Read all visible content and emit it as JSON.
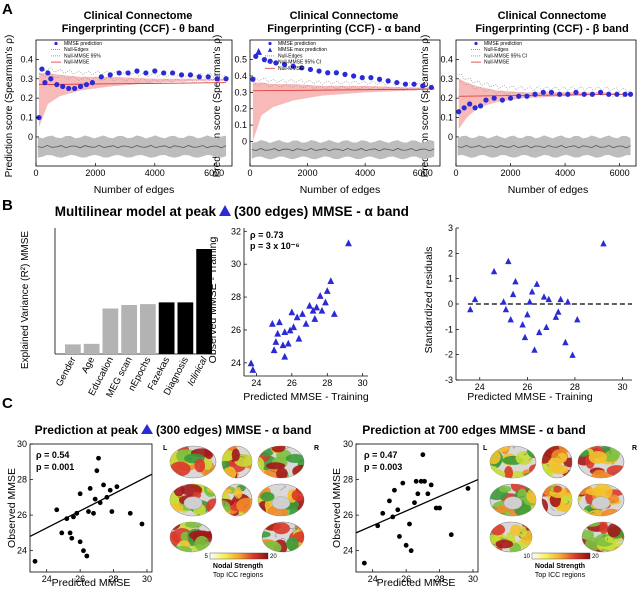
{
  "panel_labels": [
    "A",
    "B",
    "C"
  ],
  "colors": {
    "blue": "#2b2bd6",
    "red": "#d93030",
    "band": "#f7b1b1",
    "gray": "#bdbdbd",
    "grayline": "#555555",
    "bar_gray": "#b3b3b3",
    "black": "#000000"
  },
  "panel_a": {
    "charts": [
      {
        "title": "Clinical Connectome",
        "subtitle": "Fingerprinting (CCF) - θ band",
        "legend": [
          "MMSE prediction",
          "Null-Edges",
          "Null-MMSE 95%",
          "Null-MMSE"
        ]
      },
      {
        "title": "Clinical Connectome",
        "subtitle": "Fingerprinting (CCF) - α band",
        "legend": [
          "MMSE prediction",
          "MMSE max prediction",
          "Null-Edges",
          "Null-MMSE 95% CI",
          "Null-MMSE"
        ]
      },
      {
        "title": "Clinical Connectome",
        "subtitle": "Fingerprinting (CCF) - β band",
        "legend": [
          "MMSE prediction",
          "Null-Edges",
          "Null-MMSE 95% CI",
          "Null-MMSE"
        ]
      }
    ],
    "ylabel": "Prediction score (Spearman's ρ)",
    "xlabel": "Number of edges"
  },
  "panel_b": {
    "title_pre": "Multilinear model at peak",
    "title_post": "(300 edges) MMSE - α band",
    "bar_markers": [
      "*",
      "β+"
    ],
    "scatter_stats": [
      "ρ = 0.73",
      "p = 3 x 10⁻⁶"
    ]
  },
  "panel_c": {
    "left_title_pre": "Prediction at peak",
    "left_title_post": "(300 edges) MMSE - α band",
    "right_title": "Prediction at 700 edges MMSE - α band",
    "left_stats": [
      "ρ = 0.54",
      "p = 0.001"
    ],
    "right_stats": [
      "ρ = 0.47",
      "p = 0.003"
    ],
    "brain_side_labels": [
      "L",
      "R"
    ],
    "colorbar_title": "Nodal Strength",
    "colorbar_subtitle": "Top ICC regions",
    "left_colorbar_range": [
      "5",
      "20"
    ],
    "right_colorbar_range": [
      "10",
      "20"
    ]
  },
  "chart_data": [
    {
      "id": "a-theta",
      "type": "line",
      "xlabel": "Number of edges",
      "ylabel": "Prediction score (Spearman's ρ)",
      "xlim": [
        0,
        6600
      ],
      "ylim": [
        -0.15,
        0.5
      ],
      "xticks": [
        0,
        2000,
        4000,
        6000
      ],
      "yticks": [
        0,
        0.1,
        0.2,
        0.3,
        0.4
      ],
      "series": [
        {
          "name": "MMSE prediction",
          "x": [
            100,
            200,
            300,
            400,
            500,
            700,
            900,
            1100,
            1300,
            1500,
            1700,
            1900,
            2200,
            2500,
            2800,
            3100,
            3400,
            3700,
            4000,
            4300,
            4600,
            4900,
            5200,
            5500,
            5800,
            6100,
            6400
          ],
          "y": [
            0.1,
            0.35,
            0.28,
            0.33,
            0.3,
            0.27,
            0.26,
            0.25,
            0.25,
            0.26,
            0.27,
            0.28,
            0.31,
            0.32,
            0.33,
            0.33,
            0.34,
            0.33,
            0.34,
            0.33,
            0.33,
            0.32,
            0.32,
            0.31,
            0.31,
            0.3,
            0.3
          ]
        },
        {
          "name": "Null-MMSE 95%",
          "x": [
            100,
            400,
            800,
            1500,
            2500,
            4000,
            5500,
            6400
          ],
          "upper": [
            0.33,
            0.33,
            0.32,
            0.31,
            0.31,
            0.3,
            0.3,
            0.3
          ],
          "lower": [
            0.05,
            0.17,
            0.21,
            0.24,
            0.26,
            0.28,
            0.29,
            0.29
          ]
        },
        {
          "name": "Null-MMSE",
          "x": [
            100,
            6400
          ],
          "y": [
            0.27,
            0.28
          ]
        },
        {
          "name": "Null-Edges",
          "x": [
            0,
            6400
          ],
          "y": [
            -0.05,
            -0.05
          ],
          "band": [
            -0.1,
            0.0
          ]
        }
      ]
    },
    {
      "id": "a-alpha",
      "type": "line",
      "xlabel": "Number of edges",
      "ylabel": "Prediction score (Spearman's ρ)",
      "xlim": [
        0,
        6600
      ],
      "ylim": [
        -0.15,
        0.62
      ],
      "xticks": [
        0,
        2000,
        4000,
        6000
      ],
      "yticks": [
        0,
        0.1,
        0.2,
        0.3,
        0.4,
        0.5
      ],
      "series": [
        {
          "name": "MMSE prediction",
          "x": [
            100,
            200,
            500,
            700,
            900,
            1200,
            1500,
            1800,
            2100,
            2400,
            2700,
            3000,
            3300,
            3600,
            3900,
            4200,
            4500,
            4800,
            5100,
            5400,
            5700,
            6000,
            6300
          ],
          "y": [
            0.38,
            0.52,
            0.5,
            0.49,
            0.48,
            0.47,
            0.46,
            0.45,
            0.44,
            0.43,
            0.42,
            0.42,
            0.41,
            0.4,
            0.39,
            0.39,
            0.38,
            0.37,
            0.36,
            0.35,
            0.35,
            0.34,
            0.33
          ]
        },
        {
          "name": "MMSE max prediction",
          "x": [
            300
          ],
          "y": [
            0.55
          ]
        },
        {
          "name": "Null-MMSE 95% CI",
          "x": [
            100,
            400,
            800,
            1500,
            2500,
            4000,
            5500,
            6400
          ],
          "upper": [
            0.36,
            0.36,
            0.35,
            0.35,
            0.34,
            0.34,
            0.33,
            0.33
          ],
          "lower": [
            0.0,
            0.16,
            0.21,
            0.25,
            0.28,
            0.3,
            0.31,
            0.32
          ]
        },
        {
          "name": "Null-MMSE",
          "x": [
            100,
            6400
          ],
          "y": [
            0.31,
            0.32
          ]
        },
        {
          "name": "Null-Edges",
          "x": [
            0,
            6400
          ],
          "y": [
            -0.05,
            -0.05
          ],
          "band": [
            -0.1,
            0.0
          ]
        }
      ]
    },
    {
      "id": "a-beta",
      "type": "line",
      "xlabel": "Number of edges",
      "ylabel": "Prediction score (Spearman's ρ)",
      "xlim": [
        0,
        6600
      ],
      "ylim": [
        -0.15,
        0.5
      ],
      "xticks": [
        0,
        2000,
        4000,
        6000
      ],
      "yticks": [
        0,
        0.1,
        0.2,
        0.3,
        0.4
      ],
      "series": [
        {
          "name": "MMSE prediction",
          "x": [
            100,
            300,
            500,
            700,
            900,
            1100,
            1400,
            1700,
            2000,
            2300,
            2600,
            2900,
            3200,
            3500,
            3800,
            4100,
            4400,
            4700,
            5000,
            5300,
            5600,
            5900,
            6200,
            6400
          ],
          "y": [
            0.13,
            0.15,
            0.17,
            0.15,
            0.16,
            0.19,
            0.2,
            0.19,
            0.2,
            0.21,
            0.21,
            0.22,
            0.23,
            0.23,
            0.22,
            0.22,
            0.23,
            0.22,
            0.22,
            0.23,
            0.22,
            0.22,
            0.22,
            0.22
          ]
        },
        {
          "name": "Null-MMSE 95% CI",
          "x": [
            100,
            400,
            800,
            1500,
            2500,
            4000,
            5500,
            6400
          ],
          "upper": [
            0.3,
            0.28,
            0.26,
            0.24,
            0.23,
            0.23,
            0.23,
            0.22
          ],
          "lower": [
            0.04,
            0.1,
            0.15,
            0.18,
            0.2,
            0.21,
            0.22,
            0.22
          ]
        },
        {
          "name": "Null-MMSE",
          "x": [
            100,
            6400
          ],
          "y": [
            0.21,
            0.22
          ]
        },
        {
          "name": "Null-Edges",
          "x": [
            0,
            6400
          ],
          "y": [
            -0.05,
            -0.05
          ],
          "band": [
            -0.1,
            0.0
          ]
        }
      ]
    },
    {
      "id": "b-bars",
      "type": "bar",
      "ylabel": "Explained Variance (R²) MMSE",
      "categories": [
        "Gender",
        "Age",
        "Education",
        "MEG scan",
        "nEpochs",
        "Fazekas",
        "Diagnosis",
        "Iclinical"
      ],
      "values": [
        0.055,
        0.058,
        0.26,
        0.28,
        0.285,
        0.295,
        0.295,
        0.6
      ],
      "bar_colors": [
        "gray",
        "gray",
        "gray",
        "gray",
        "gray",
        "black",
        "black",
        "black"
      ],
      "ylim": [
        0,
        0.72
      ]
    },
    {
      "id": "b-scatter",
      "type": "scatter",
      "xlabel": "Predicted MMSE - Training",
      "ylabel": "Observed MMSE - Training",
      "xlim": [
        23.3,
        30.3
      ],
      "ylim": [
        23.2,
        32.2
      ],
      "xticks": [
        24,
        26,
        28,
        30
      ],
      "yticks": [
        24,
        26,
        28,
        30,
        32
      ],
      "x": [
        23.7,
        23.8,
        24.9,
        25.0,
        25.1,
        25.2,
        25.3,
        25.5,
        25.6,
        25.6,
        25.8,
        25.9,
        26.0,
        26.1,
        26.3,
        26.4,
        26.6,
        26.8,
        27.0,
        27.2,
        27.3,
        27.4,
        27.6,
        27.7,
        27.9,
        28.0,
        28.2,
        28.4,
        29.2
      ],
      "y": [
        24.0,
        23.6,
        26.4,
        24.8,
        25.3,
        25.8,
        26.5,
        25.1,
        24.4,
        25.9,
        25.2,
        26.0,
        27.1,
        26.2,
        26.8,
        25.5,
        27.0,
        26.4,
        27.5,
        27.2,
        26.7,
        27.4,
        28.1,
        27.2,
        27.7,
        28.4,
        29.0,
        27.0,
        31.3
      ]
    },
    {
      "id": "b-residuals",
      "type": "scatter",
      "xlabel": "Predicted MMSE - Training",
      "ylabel": "Standardized residuals",
      "xlim": [
        23.0,
        30.4
      ],
      "ylim": [
        -3,
        3
      ],
      "xticks": [
        24,
        26,
        28,
        30
      ],
      "yticks": [
        -3,
        -2,
        -1,
        0,
        1,
        2,
        3
      ],
      "reference_line": 0,
      "x": [
        23.6,
        23.8,
        24.6,
        25.0,
        25.1,
        25.2,
        25.3,
        25.4,
        25.5,
        25.8,
        25.9,
        26.0,
        26.1,
        26.2,
        26.3,
        26.4,
        26.5,
        26.7,
        26.8,
        26.9,
        27.2,
        27.3,
        27.4,
        27.6,
        27.7,
        27.9,
        28.1,
        29.2
      ],
      "y": [
        -0.2,
        0.2,
        1.3,
        0.1,
        -0.2,
        1.7,
        -0.6,
        0.4,
        0.9,
        -0.8,
        -1.3,
        -0.4,
        0.1,
        0.5,
        -1.8,
        0.8,
        -1.1,
        0.3,
        -0.9,
        0.2,
        -0.5,
        -0.3,
        0.2,
        -1.5,
        0.1,
        -2.0,
        -0.6,
        2.4
      ]
    },
    {
      "id": "c-left-scatter",
      "type": "scatter",
      "xlabel": "Predicted MMSE",
      "ylabel": "Observed MMSE",
      "xlim": [
        23.0,
        30.3
      ],
      "ylim": [
        22.8,
        30.0
      ],
      "xticks": [
        24,
        26,
        28,
        30
      ],
      "yticks": [
        24,
        26,
        28,
        30
      ],
      "fit_line": {
        "x": [
          23.0,
          30.3
        ],
        "y": [
          24.8,
          28.3
        ]
      },
      "x": [
        23.3,
        24.6,
        24.9,
        25.2,
        25.4,
        25.5,
        25.6,
        25.8,
        26.0,
        26.0,
        26.2,
        26.4,
        26.5,
        26.6,
        26.8,
        26.9,
        27.0,
        27.1,
        27.2,
        27.4,
        27.6,
        27.8,
        27.9,
        28.2,
        29.0,
        29.7
      ],
      "y": [
        23.4,
        26.3,
        25.0,
        25.8,
        25.0,
        24.7,
        25.9,
        26.1,
        24.5,
        27.2,
        24.0,
        23.7,
        26.2,
        27.5,
        26.1,
        26.9,
        28.5,
        29.2,
        26.7,
        27.7,
        27.0,
        27.4,
        26.2,
        27.6,
        26.1,
        25.5
      ]
    },
    {
      "id": "c-right-scatter",
      "type": "scatter",
      "xlabel": "Predicted MMSE",
      "ylabel": "Observed MMSE",
      "xlim": [
        23.0,
        30.3
      ],
      "ylim": [
        22.8,
        30.0
      ],
      "xticks": [
        24,
        26,
        28,
        30
      ],
      "yticks": [
        24,
        26,
        28,
        30
      ],
      "fit_line": {
        "x": [
          23.0,
          30.3
        ],
        "y": [
          25.0,
          28.0
        ]
      },
      "x": [
        23.5,
        24.3,
        24.6,
        25.0,
        25.2,
        25.3,
        25.5,
        25.6,
        25.8,
        26.0,
        26.2,
        26.3,
        26.5,
        26.6,
        26.7,
        26.9,
        27.0,
        27.1,
        27.3,
        27.5,
        27.8,
        28.0,
        28.7,
        29.7
      ],
      "y": [
        23.3,
        25.4,
        26.1,
        26.8,
        25.9,
        27.4,
        26.3,
        24.8,
        27.8,
        24.3,
        25.5,
        24.0,
        26.7,
        27.9,
        27.2,
        27.9,
        29.4,
        27.9,
        27.2,
        27.7,
        26.4,
        26.4,
        24.9,
        27.5
      ]
    }
  ]
}
